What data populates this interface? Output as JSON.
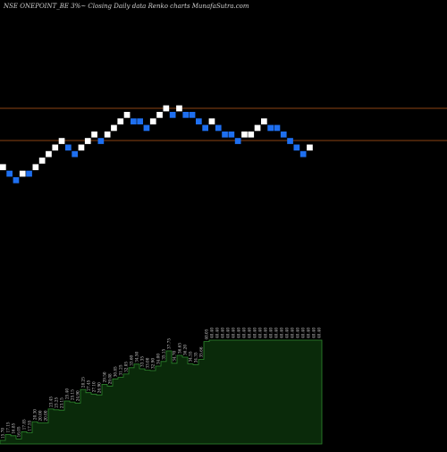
{
  "header": {
    "title": "NSE ONEPOINT_BE 3%~  Closing Daily data  Renko  charts MunafaSutra.com"
  },
  "colors": {
    "background": "#000000",
    "up_brick": "#ffffff",
    "down_brick": "#1e6ff0",
    "reference_line": "#8b4513",
    "volume_fill": "#0a2a0a",
    "volume_stroke": "#2f8a2f",
    "label_text": "#cfcfcf"
  },
  "chart_data": {
    "type": "renko",
    "title": "NSE ONEPOINT_BE 3%~  Closing Daily data  Renko  charts MunafaSutra.com",
    "reference_lines": [
      {
        "level": 0.0
      },
      {
        "level": 2.65
      }
    ],
    "bricks": [
      {
        "level": 8,
        "direction": "up"
      },
      {
        "level": 7,
        "direction": "down"
      },
      {
        "level": 6,
        "direction": "down"
      },
      {
        "level": 7,
        "direction": "up"
      },
      {
        "level": 7,
        "direction": "down"
      },
      {
        "level": 8,
        "direction": "up"
      },
      {
        "level": 9,
        "direction": "up"
      },
      {
        "level": 10,
        "direction": "up"
      },
      {
        "level": 11,
        "direction": "up"
      },
      {
        "level": 12,
        "direction": "up"
      },
      {
        "level": 11,
        "direction": "down"
      },
      {
        "level": 10,
        "direction": "down"
      },
      {
        "level": 11,
        "direction": "up"
      },
      {
        "level": 12,
        "direction": "up"
      },
      {
        "level": 13,
        "direction": "up"
      },
      {
        "level": 12,
        "direction": "down"
      },
      {
        "level": 13,
        "direction": "up"
      },
      {
        "level": 14,
        "direction": "up"
      },
      {
        "level": 15,
        "direction": "up"
      },
      {
        "level": 16,
        "direction": "up"
      },
      {
        "level": 15,
        "direction": "down"
      },
      {
        "level": 15,
        "direction": "down"
      },
      {
        "level": 14,
        "direction": "down"
      },
      {
        "level": 15,
        "direction": "up"
      },
      {
        "level": 16,
        "direction": "up"
      },
      {
        "level": 17,
        "direction": "up"
      },
      {
        "level": 16,
        "direction": "down"
      },
      {
        "level": 17,
        "direction": "up"
      },
      {
        "level": 16,
        "direction": "down"
      },
      {
        "level": 16,
        "direction": "down"
      },
      {
        "level": 15,
        "direction": "down"
      },
      {
        "level": 14,
        "direction": "down"
      },
      {
        "level": 15,
        "direction": "up"
      },
      {
        "level": 14,
        "direction": "down"
      },
      {
        "level": 13,
        "direction": "down"
      },
      {
        "level": 13,
        "direction": "down"
      },
      {
        "level": 12,
        "direction": "down"
      },
      {
        "level": 13,
        "direction": "up"
      },
      {
        "level": 13,
        "direction": "up"
      },
      {
        "level": 14,
        "direction": "up"
      },
      {
        "level": 15,
        "direction": "up"
      },
      {
        "level": 14,
        "direction": "down"
      },
      {
        "level": 14,
        "direction": "down"
      },
      {
        "level": 13,
        "direction": "down"
      },
      {
        "level": 12,
        "direction": "down"
      },
      {
        "level": 11,
        "direction": "down"
      },
      {
        "level": 10,
        "direction": "down"
      },
      {
        "level": 11,
        "direction": "up"
      }
    ],
    "volume_labels": [
      "15.70",
      "17.15",
      "16.85",
      "16.05",
      "17.85",
      "17.55",
      "20.30",
      "20.00",
      "20.00",
      "23.45",
      "23.25",
      "23.15",
      "25.40",
      "25.15",
      "24.90",
      "28.25",
      "27.45",
      "27.10",
      "26.90",
      "29.50",
      "29.08",
      "30.85",
      "31.25",
      "32.05",
      "33.60",
      "34.50",
      "33.35",
      "33.00",
      "32.90",
      "34.00",
      "35.15",
      "37.75",
      "34.70",
      "36.65",
      "36.20",
      "34.55",
      "34.35",
      "35.66",
      "40.05",
      "40.40",
      "40.40",
      "40.40",
      "40.40",
      "40.40",
      "40.40",
      "40.40",
      "40.40",
      "40.40",
      "40.40",
      "40.40",
      "40.40",
      "40.40",
      "40.40",
      "40.40",
      "40.40",
      "40.40",
      "40.40",
      "40.40",
      "40.40",
      "40.40"
    ]
  }
}
